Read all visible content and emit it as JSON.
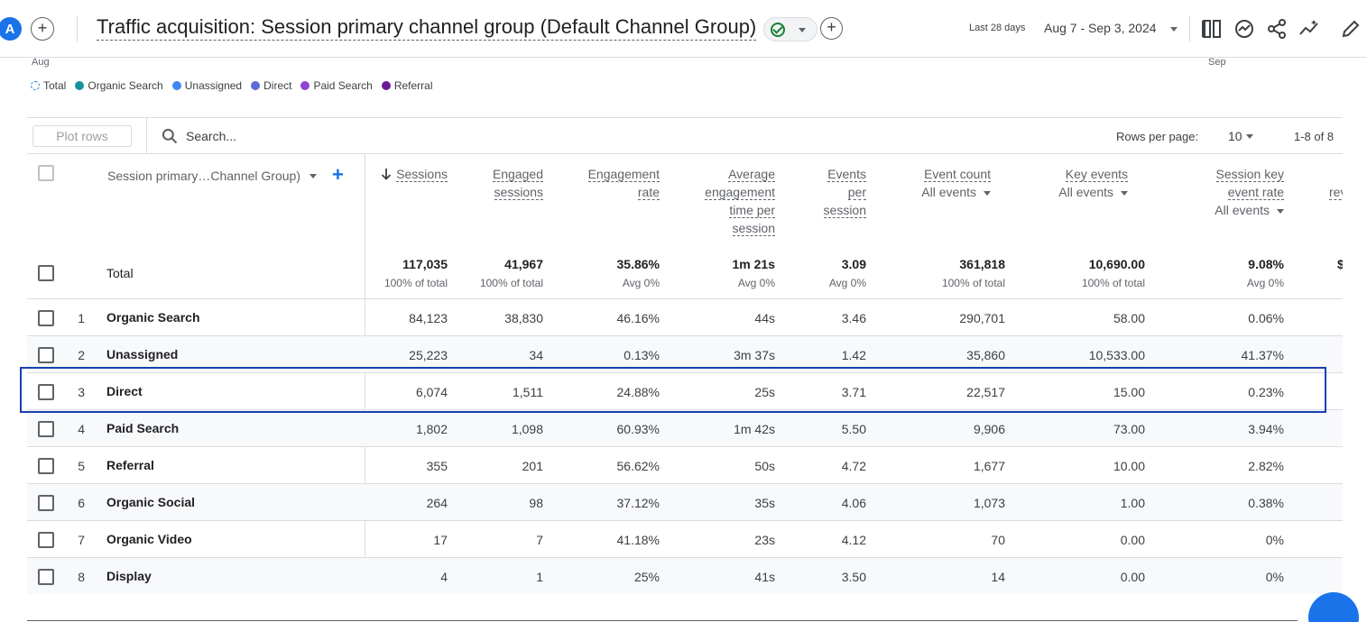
{
  "header": {
    "avatar_letter": "A",
    "add_label": "+",
    "title": "Traffic acquisition: Session primary channel group (Default Channel Group)",
    "add_comparison_label": "+",
    "date_label": "Last 28 days",
    "date_range": "Aug 7 - Sep 3, 2024"
  },
  "chart": {
    "axis_start": "Aug",
    "axis_end": "Sep",
    "legend": [
      {
        "label": "Total",
        "color": "#1a73e8",
        "style": "dashed"
      },
      {
        "label": "Organic Search",
        "color": "#12939a"
      },
      {
        "label": "Unassigned",
        "color": "#4285f4"
      },
      {
        "label": "Direct",
        "color": "#5c6bd8"
      },
      {
        "label": "Paid Search",
        "color": "#8e44d6"
      },
      {
        "label": "Referral",
        "color": "#6a1b9a"
      }
    ]
  },
  "toolbar": {
    "plot_rows_label": "Plot rows",
    "search_placeholder": "Search...",
    "rows_per_page_label": "Rows per page:",
    "rows_per_page_value": "10",
    "pagination": "1-8 of 8"
  },
  "table": {
    "dimension_header": "Session primary…Channel Group)",
    "columns": [
      {
        "label": "Sessions"
      },
      {
        "label": "Engaged sessions"
      },
      {
        "label": "Engagement rate"
      },
      {
        "label": "Average engagement time per session"
      },
      {
        "label": "Events per session"
      },
      {
        "label": "Event count",
        "filter": "All events"
      },
      {
        "label": "Key events",
        "filter": "All events"
      },
      {
        "label": "Session key event rate",
        "filter": "All events"
      },
      {
        "label": "rev"
      }
    ],
    "header_lines": {
      "c1": [
        "Engaged",
        "sessions"
      ],
      "c2": [
        "Engagement",
        "rate"
      ],
      "c3": [
        "Average",
        "engagement",
        "time per",
        "session"
      ],
      "c4": [
        "Events",
        "per",
        "session"
      ],
      "c7": [
        "Session key",
        "event rate"
      ]
    },
    "total": {
      "label": "Total",
      "values": [
        "117,035",
        "41,967",
        "35.86%",
        "1m 21s",
        "3.09",
        "361,818",
        "10,690.00",
        "9.08%",
        "$"
      ],
      "subs": [
        "100% of total",
        "100% of total",
        "Avg 0%",
        "Avg 0%",
        "Avg 0%",
        "100% of total",
        "100% of total",
        "Avg 0%"
      ]
    },
    "rows": [
      {
        "num": "1",
        "channel": "Organic Search",
        "values": [
          "84,123",
          "38,830",
          "46.16%",
          "44s",
          "3.46",
          "290,701",
          "58.00",
          "0.06%"
        ]
      },
      {
        "num": "2",
        "channel": "Unassigned",
        "values": [
          "25,223",
          "34",
          "0.13%",
          "3m 37s",
          "1.42",
          "35,860",
          "10,533.00",
          "41.37%"
        ]
      },
      {
        "num": "3",
        "channel": "Direct",
        "values": [
          "6,074",
          "1,511",
          "24.88%",
          "25s",
          "3.71",
          "22,517",
          "15.00",
          "0.23%"
        ]
      },
      {
        "num": "4",
        "channel": "Paid Search",
        "values": [
          "1,802",
          "1,098",
          "60.93%",
          "1m 42s",
          "5.50",
          "9,906",
          "73.00",
          "3.94%"
        ]
      },
      {
        "num": "5",
        "channel": "Referral",
        "values": [
          "355",
          "201",
          "56.62%",
          "50s",
          "4.72",
          "1,677",
          "10.00",
          "2.82%"
        ]
      },
      {
        "num": "6",
        "channel": "Organic Social",
        "values": [
          "264",
          "98",
          "37.12%",
          "35s",
          "4.06",
          "1,073",
          "1.00",
          "0.38%"
        ]
      },
      {
        "num": "7",
        "channel": "Organic Video",
        "values": [
          "17",
          "7",
          "41.18%",
          "23s",
          "4.12",
          "70",
          "0.00",
          "0%"
        ]
      },
      {
        "num": "8",
        "channel": "Display",
        "values": [
          "4",
          "1",
          "25%",
          "41s",
          "3.50",
          "14",
          "0.00",
          "0%"
        ]
      }
    ],
    "highlighted_row": "Direct"
  }
}
